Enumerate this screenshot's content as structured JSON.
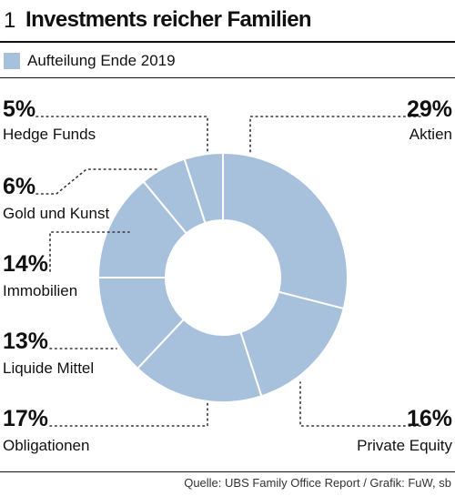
{
  "header": {
    "figure_number": "1",
    "title": "Investments reicher Familien"
  },
  "legend": {
    "label": "Aufteilung Ende 2019",
    "color": "#a7c1dc"
  },
  "footer": {
    "source": "Quelle: UBS Family Office Report / Grafik: FuW, sb"
  },
  "colors": {
    "slice": "#a7c1dc",
    "slice_border": "#ffffff",
    "leader": "#333333"
  },
  "chart_data": {
    "type": "pie",
    "subtype": "donut",
    "title": "Investments reicher Familien",
    "series_name": "Aufteilung Ende 2019",
    "unit": "%",
    "slices": [
      {
        "label": "Aktien",
        "value": 29,
        "display": "29%"
      },
      {
        "label": "Private Equity",
        "value": 16,
        "display": "16%"
      },
      {
        "label": "Obligationen",
        "value": 17,
        "display": "17%"
      },
      {
        "label": "Liquide Mittel",
        "value": 13,
        "display": "13%"
      },
      {
        "label": "Immobilien",
        "value": 14,
        "display": "14%"
      },
      {
        "label": "Gold und Kunst",
        "value": 6,
        "display": "6%"
      },
      {
        "label": "Hedge Funds",
        "value": 5,
        "display": "5%"
      }
    ]
  }
}
